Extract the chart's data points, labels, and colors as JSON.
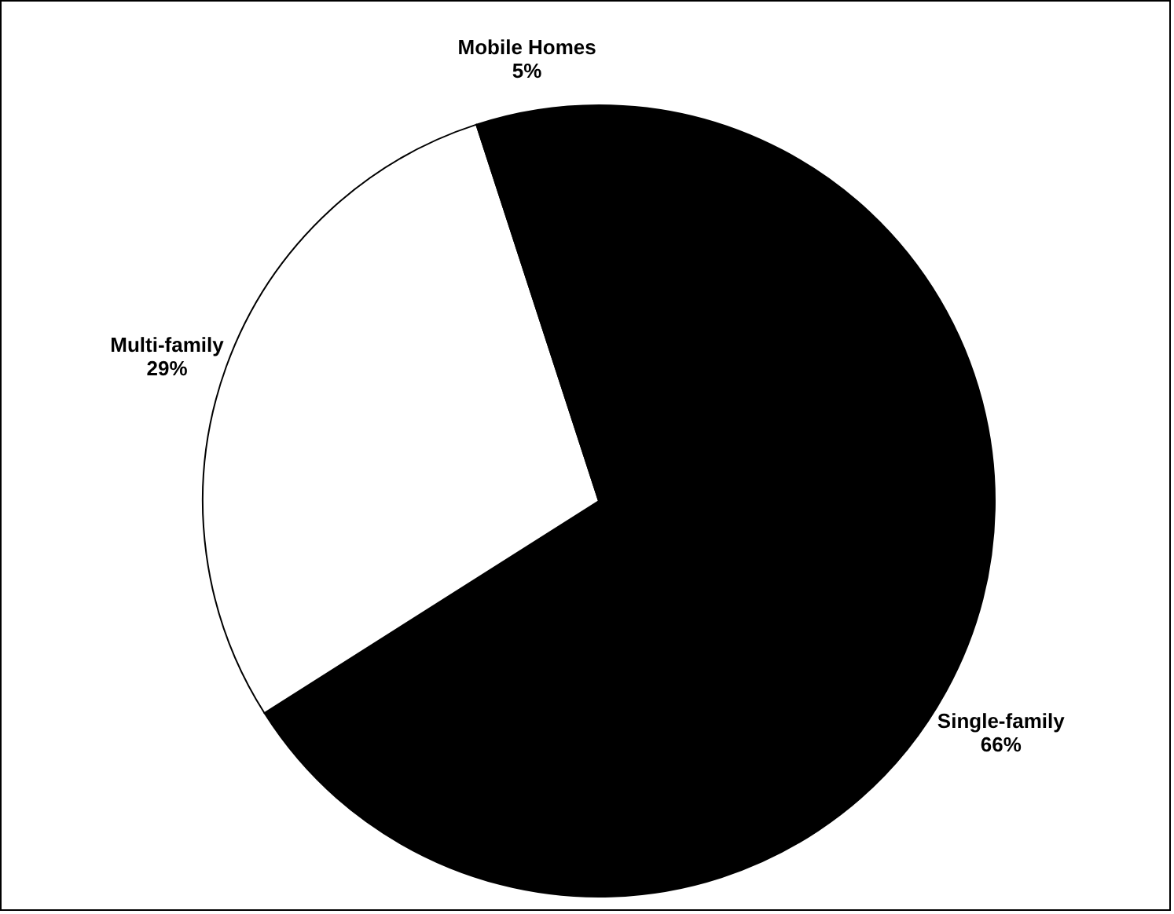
{
  "chart_data": {
    "type": "pie",
    "categories": [
      "Single-family",
      "Multi-family",
      "Mobile Homes"
    ],
    "values": [
      66,
      29,
      5
    ],
    "value_labels": [
      "66%",
      "29%",
      "5%"
    ],
    "colors": [
      "#000000",
      "#ffffff",
      "#000000"
    ]
  }
}
